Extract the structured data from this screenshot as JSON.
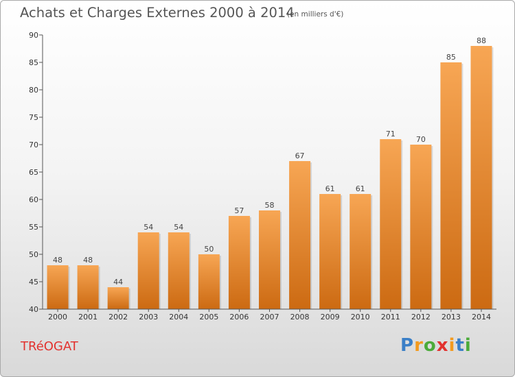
{
  "title": "Achats et Charges Externes 2000 à 2014",
  "subtitle": "(en milliers d'€)",
  "town": "TRéOGAT",
  "brand": {
    "letters": [
      "P",
      "r",
      "o",
      "x",
      "i",
      "t",
      "i"
    ],
    "colors": [
      "#3a7fc7",
      "#f39a1e",
      "#4bab3a",
      "#e2322f",
      "#f39a1e",
      "#3a7fc7",
      "#4bab3a"
    ]
  },
  "colors": {
    "bar_top": "#f7a654",
    "bar_bottom": "#cc6a12",
    "title": "#555555",
    "town": "#e2322f"
  },
  "chart_data": {
    "type": "bar",
    "title": "Achats et Charges Externes 2000 à 2014",
    "subtitle": "(en milliers d'€)",
    "categories": [
      "2000",
      "2001",
      "2002",
      "2003",
      "2004",
      "2005",
      "2006",
      "2007",
      "2008",
      "2009",
      "2010",
      "2011",
      "2012",
      "2013",
      "2014"
    ],
    "values": [
      48,
      48,
      44,
      54,
      54,
      50,
      57,
      58,
      67,
      61,
      61,
      71,
      70,
      85,
      88
    ],
    "data_labels": [
      "48",
      "48",
      "44",
      "54",
      "54",
      "50",
      "57",
      "58",
      "67",
      "61",
      "61",
      "71",
      "70",
      "85",
      "88"
    ],
    "yticks": [
      40,
      45,
      50,
      55,
      60,
      65,
      70,
      75,
      80,
      85,
      90
    ],
    "ylim": [
      40,
      90
    ],
    "xlabel": "",
    "ylabel": "",
    "grid": false,
    "legend": "none"
  }
}
